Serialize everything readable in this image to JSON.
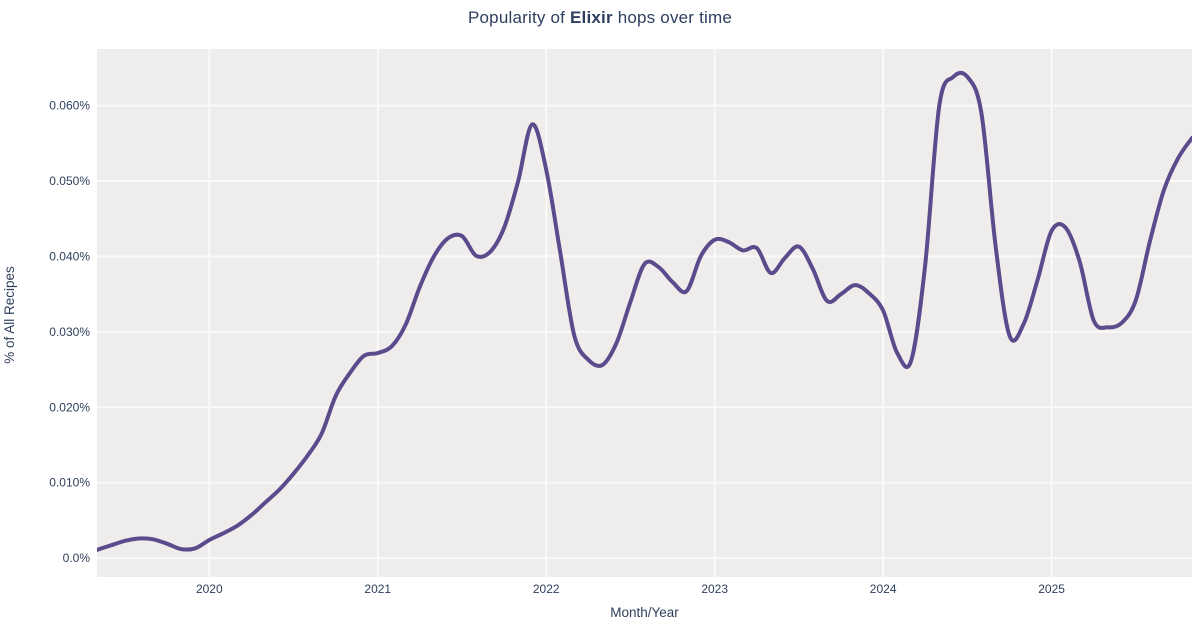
{
  "title": {
    "prefix": "Popularity of ",
    "emphasis": "Elixir",
    "suffix": " hops over time"
  },
  "colors": {
    "line": "#5c4b8c",
    "plot_background": "#efedec",
    "gridline": "#fafaf9",
    "text": "#2e3f5c",
    "page_background": "#ffffff"
  },
  "chart_data": {
    "type": "line",
    "title": "Popularity of Elixir hops over time",
    "xlabel": "Month/Year",
    "ylabel": "% of All Recipes",
    "legend_position": "none",
    "grid": true,
    "smoothing": "spline",
    "x_tick_labels": [
      "2020",
      "2021",
      "2022",
      "2023",
      "2024",
      "2025"
    ],
    "x_tick_dates": [
      "2020-01",
      "2021-01",
      "2022-01",
      "2023-01",
      "2024-01",
      "2025-01"
    ],
    "y_tick_labels": [
      "0.0%",
      "0.010%",
      "0.020%",
      "0.030%",
      "0.040%",
      "0.050%",
      "0.060%"
    ],
    "y_tick_values": [
      0,
      0.01,
      0.02,
      0.03,
      0.04,
      0.05,
      0.06
    ],
    "ylim": [
      -0.0025,
      0.0675
    ],
    "series": [
      {
        "name": "Elixir",
        "unit": "% of all recipes",
        "points": [
          {
            "date": "2019-05",
            "value": 0.0011
          },
          {
            "date": "2019-06",
            "value": 0.0017
          },
          {
            "date": "2019-07",
            "value": 0.0023
          },
          {
            "date": "2019-08",
            "value": 0.0026
          },
          {
            "date": "2019-09",
            "value": 0.0025
          },
          {
            "date": "2019-10",
            "value": 0.0019
          },
          {
            "date": "2019-11",
            "value": 0.0012
          },
          {
            "date": "2019-12",
            "value": 0.0013
          },
          {
            "date": "2020-01",
            "value": 0.0024
          },
          {
            "date": "2020-02",
            "value": 0.0033
          },
          {
            "date": "2020-03",
            "value": 0.0043
          },
          {
            "date": "2020-04",
            "value": 0.0057
          },
          {
            "date": "2020-05",
            "value": 0.0074
          },
          {
            "date": "2020-06",
            "value": 0.0091
          },
          {
            "date": "2020-07",
            "value": 0.0112
          },
          {
            "date": "2020-08",
            "value": 0.0136
          },
          {
            "date": "2020-09",
            "value": 0.0165
          },
          {
            "date": "2020-10",
            "value": 0.0215
          },
          {
            "date": "2020-11",
            "value": 0.0245
          },
          {
            "date": "2020-12",
            "value": 0.0268
          },
          {
            "date": "2021-01",
            "value": 0.0272
          },
          {
            "date": "2021-02",
            "value": 0.0281
          },
          {
            "date": "2021-03",
            "value": 0.031
          },
          {
            "date": "2021-04",
            "value": 0.036
          },
          {
            "date": "2021-05",
            "value": 0.04
          },
          {
            "date": "2021-06",
            "value": 0.0424
          },
          {
            "date": "2021-07",
            "value": 0.0427
          },
          {
            "date": "2021-08",
            "value": 0.0401
          },
          {
            "date": "2021-09",
            "value": 0.0406
          },
          {
            "date": "2021-10",
            "value": 0.0438
          },
          {
            "date": "2021-11",
            "value": 0.05
          },
          {
            "date": "2021-12",
            "value": 0.0575
          },
          {
            "date": "2022-01",
            "value": 0.0515
          },
          {
            "date": "2022-02",
            "value": 0.0405
          },
          {
            "date": "2022-03",
            "value": 0.0295
          },
          {
            "date": "2022-04",
            "value": 0.0263
          },
          {
            "date": "2022-05",
            "value": 0.0256
          },
          {
            "date": "2022-06",
            "value": 0.0285
          },
          {
            "date": "2022-07",
            "value": 0.034
          },
          {
            "date": "2022-08",
            "value": 0.039
          },
          {
            "date": "2022-09",
            "value": 0.0386
          },
          {
            "date": "2022-10",
            "value": 0.0366
          },
          {
            "date": "2022-11",
            "value": 0.0354
          },
          {
            "date": "2022-12",
            "value": 0.04
          },
          {
            "date": "2023-01",
            "value": 0.0422
          },
          {
            "date": "2023-02",
            "value": 0.0419
          },
          {
            "date": "2023-03",
            "value": 0.0408
          },
          {
            "date": "2023-04",
            "value": 0.0411
          },
          {
            "date": "2023-05",
            "value": 0.0378
          },
          {
            "date": "2023-06",
            "value": 0.0398
          },
          {
            "date": "2023-07",
            "value": 0.0413
          },
          {
            "date": "2023-08",
            "value": 0.0383
          },
          {
            "date": "2023-09",
            "value": 0.0341
          },
          {
            "date": "2023-10",
            "value": 0.035
          },
          {
            "date": "2023-11",
            "value": 0.0362
          },
          {
            "date": "2023-12",
            "value": 0.0351
          },
          {
            "date": "2024-01",
            "value": 0.0328
          },
          {
            "date": "2024-02",
            "value": 0.0272
          },
          {
            "date": "2024-03",
            "value": 0.0262
          },
          {
            "date": "2024-04",
            "value": 0.039
          },
          {
            "date": "2024-05",
            "value": 0.06
          },
          {
            "date": "2024-06",
            "value": 0.0638
          },
          {
            "date": "2024-07",
            "value": 0.0638
          },
          {
            "date": "2024-08",
            "value": 0.059
          },
          {
            "date": "2024-09",
            "value": 0.0415
          },
          {
            "date": "2024-10",
            "value": 0.0295
          },
          {
            "date": "2024-11",
            "value": 0.031
          },
          {
            "date": "2024-12",
            "value": 0.0369
          },
          {
            "date": "2025-01",
            "value": 0.0434
          },
          {
            "date": "2025-02",
            "value": 0.0438
          },
          {
            "date": "2025-03",
            "value": 0.0393
          },
          {
            "date": "2025-04",
            "value": 0.0315
          },
          {
            "date": "2025-05",
            "value": 0.0306
          },
          {
            "date": "2025-06",
            "value": 0.0312
          },
          {
            "date": "2025-07",
            "value": 0.0342
          },
          {
            "date": "2025-08",
            "value": 0.042
          },
          {
            "date": "2025-09",
            "value": 0.0488
          },
          {
            "date": "2025-10",
            "value": 0.053
          },
          {
            "date": "2025-11",
            "value": 0.0557
          }
        ]
      }
    ]
  }
}
